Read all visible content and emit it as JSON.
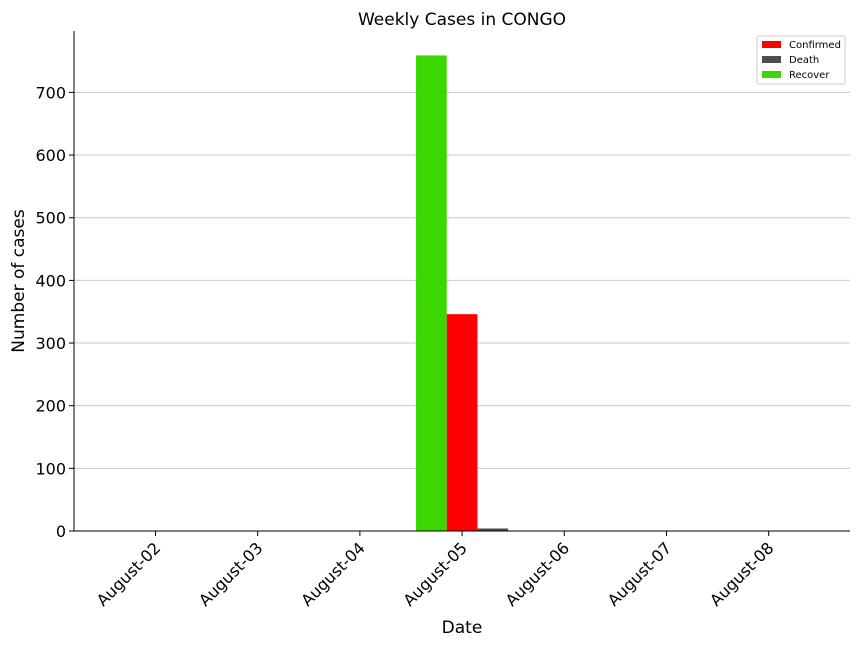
{
  "chart_data": {
    "type": "bar",
    "title": "Weekly Cases in CONGO",
    "xlabel": "Date",
    "ylabel": "Number of cases",
    "categories": [
      "August-02",
      "August-03",
      "August-04",
      "August-05",
      "August-06",
      "August-07",
      "August-08"
    ],
    "series": [
      {
        "name": "Recover",
        "color": "#3cd700",
        "values": [
          0,
          0,
          0,
          759,
          0,
          0,
          0
        ]
      },
      {
        "name": "Confirmed",
        "color": "#ff0000",
        "values": [
          0,
          0,
          0,
          346,
          0,
          0,
          0
        ]
      },
      {
        "name": "Death",
        "color": "#4d4d4d",
        "values": [
          0,
          0,
          0,
          4,
          0,
          0,
          0
        ]
      }
    ],
    "legend_order": [
      "Confirmed",
      "Death",
      "Recover"
    ],
    "ylim": [
      0,
      798
    ],
    "yticks": [
      0,
      100,
      200,
      300,
      400,
      500,
      600,
      700
    ],
    "grid": "horizontal",
    "legend_position": "top-right"
  }
}
